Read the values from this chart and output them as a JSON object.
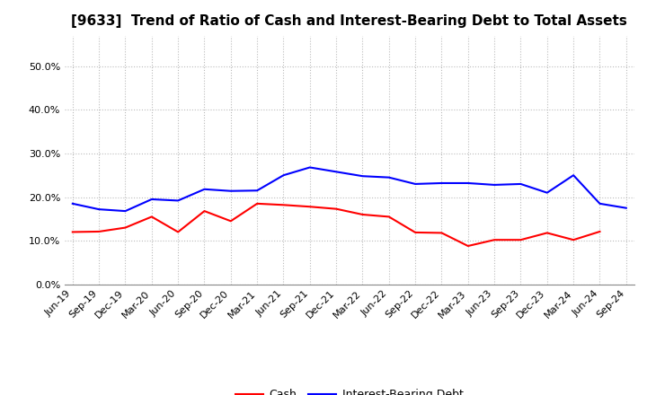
{
  "title": "[9633]  Trend of Ratio of Cash and Interest-Bearing Debt to Total Assets",
  "x_labels": [
    "Jun-19",
    "Sep-19",
    "Dec-19",
    "Mar-20",
    "Jun-20",
    "Sep-20",
    "Dec-20",
    "Mar-21",
    "Jun-21",
    "Sep-21",
    "Dec-21",
    "Mar-22",
    "Jun-22",
    "Sep-22",
    "Dec-22",
    "Mar-23",
    "Jun-23",
    "Sep-23",
    "Dec-23",
    "Mar-24",
    "Jun-24",
    "Sep-24"
  ],
  "cash": [
    0.12,
    0.121,
    0.13,
    0.155,
    0.12,
    0.168,
    0.145,
    0.185,
    0.182,
    0.178,
    0.173,
    0.16,
    0.155,
    0.119,
    0.118,
    0.088,
    0.102,
    0.102,
    0.118,
    0.102,
    0.121,
    null
  ],
  "interest_bearing_debt": [
    0.185,
    0.172,
    0.168,
    0.195,
    0.192,
    0.218,
    0.214,
    0.215,
    0.25,
    0.268,
    0.258,
    0.248,
    0.245,
    0.23,
    0.232,
    0.232,
    0.228,
    0.23,
    0.21,
    0.25,
    0.185,
    0.175
  ],
  "cash_color": "#ff0000",
  "debt_color": "#0000ff",
  "ylim": [
    0.0,
    0.57
  ],
  "yticks": [
    0.0,
    0.1,
    0.2,
    0.3,
    0.4,
    0.5
  ],
  "background_color": "#ffffff",
  "grid_color": "#bbbbbb",
  "title_fontsize": 11,
  "tick_fontsize": 8,
  "legend_fontsize": 9,
  "linewidth": 1.5
}
